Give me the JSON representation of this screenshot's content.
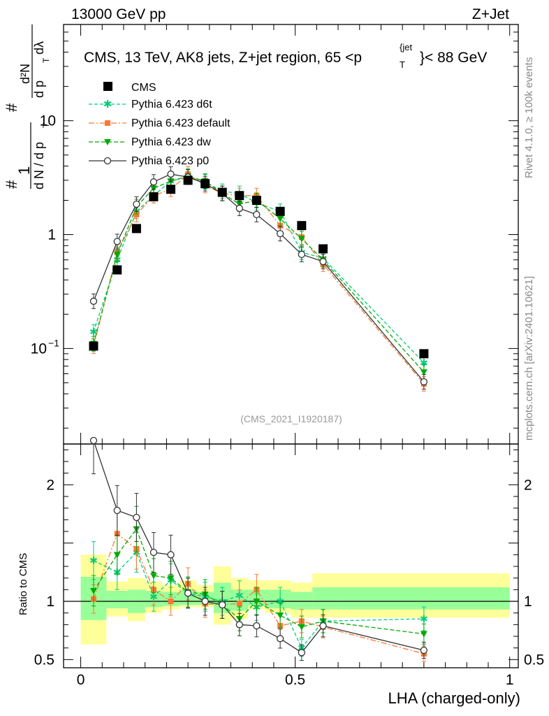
{
  "header": {
    "left": "13000 GeV pp",
    "right": "Z+Jet",
    "rivet": "Rivet 4.1.0, ≥ 100k events",
    "mcplots": "mcplots.cern.ch [arXiv:2401.10621]",
    "analysis": "(CMS_2021_I1920187)"
  },
  "colors": {
    "cms": "#000000",
    "d6t": "#00cc77",
    "default": "#ff7733",
    "dw": "#00aa00",
    "p0": "#333333",
    "band_outer": "#ffff99",
    "band_inner": "#99ff99"
  },
  "chart_data": [
    {
      "type": "scatter",
      "title": "CMS, 13 TeV, AK8 jets, Z+jet region, 65 < pT^jet < 88 GeV",
      "title_parts": {
        "prefix": "CMS, 13 TeV, AK8 jets, Z+jet region, 65 <p",
        "sub": "T",
        "sup": "{jet",
        "suffix": "}< 88 GeV"
      },
      "ylabel": "1/N dN/dp_T d^2N/dp_T dλ",
      "ylabel_parts": {
        "num": "1",
        "den": "d N / d p",
        "sub": "T",
        "num2": "d²N",
        "den2": "d p",
        "sub2": "T",
        "tail": " dλ",
        "hash": "#"
      },
      "yscale": "log",
      "ylim": [
        0.0145,
        70
      ],
      "xlim": [
        -0.04,
        1.02
      ],
      "y_ticks": [
        {
          "value": 0.1,
          "label": "10",
          "sup": "−1"
        },
        {
          "value": 1,
          "label": "1",
          "sup": ""
        },
        {
          "value": 10,
          "label": "10",
          "sup": ""
        }
      ],
      "legend_position": "top-left",
      "x": [
        0.03,
        0.085,
        0.13,
        0.17,
        0.21,
        0.25,
        0.29,
        0.33,
        0.37,
        0.41,
        0.465,
        0.515,
        0.565,
        0.8
      ],
      "series": [
        {
          "name": "CMS",
          "key": "cms",
          "marker": "square",
          "values": [
            0.105,
            0.49,
            1.13,
            2.15,
            2.5,
            3.0,
            2.8,
            2.35,
            2.2,
            2.0,
            1.6,
            1.2,
            0.75,
            0.09
          ]
        },
        {
          "name": "Pythia 6.423 d6t",
          "key": "d6t",
          "marker": "star",
          "dash": "5,3",
          "values": [
            0.14,
            0.6,
            1.6,
            2.2,
            2.95,
            3.2,
            2.9,
            2.4,
            2.3,
            1.9,
            1.6,
            0.7,
            0.62,
            0.075
          ]
        },
        {
          "name": "Pythia 6.423 default",
          "key": "default",
          "marker": "square-small",
          "dash": "8,3,2,3",
          "values": [
            0.105,
            0.7,
            1.5,
            2.2,
            2.5,
            3.4,
            2.7,
            2.3,
            2.2,
            2.2,
            1.2,
            0.95,
            0.55,
            0.049
          ]
        },
        {
          "name": "Pythia 6.423 dw",
          "key": "dw",
          "marker": "triangle-down",
          "dash": "6,3",
          "values": [
            0.11,
            0.67,
            1.76,
            2.55,
            2.95,
            3.25,
            2.95,
            2.3,
            1.85,
            2.0,
            1.38,
            0.92,
            0.6,
            0.062
          ]
        },
        {
          "name": "Pythia 6.423 p0",
          "key": "p0",
          "marker": "circle-open",
          "dash": "",
          "values": [
            0.26,
            0.87,
            1.85,
            2.9,
            3.4,
            3.2,
            2.8,
            2.3,
            1.7,
            1.5,
            1.02,
            0.67,
            0.58,
            0.051
          ]
        }
      ]
    },
    {
      "type": "scatter",
      "ylabel": "Ratio to CMS",
      "xlabel": "LHA (charged-only)",
      "ylim": [
        0.43,
        2.35
      ],
      "xlim": [
        -0.04,
        1.02
      ],
      "y_ticks": [
        {
          "value": 0.5,
          "label": "0.5"
        },
        {
          "value": 1,
          "label": "1"
        },
        {
          "value": 2,
          "label": "2"
        }
      ],
      "x_ticks": [
        {
          "value": 0,
          "label": "0"
        },
        {
          "value": 0.5,
          "label": "0.5"
        },
        {
          "value": 1,
          "label": "1"
        }
      ],
      "x": [
        0.03,
        0.085,
        0.13,
        0.17,
        0.21,
        0.25,
        0.29,
        0.33,
        0.37,
        0.41,
        0.465,
        0.515,
        0.565,
        0.8
      ],
      "bands": {
        "edges": [
          0.0,
          0.06,
          0.11,
          0.15,
          0.19,
          0.23,
          0.27,
          0.31,
          0.35,
          0.39,
          0.43,
          0.49,
          0.54,
          0.6,
          1.0
        ],
        "outer": [
          [
            0.63,
            1.4
          ],
          [
            0.87,
            1.17
          ],
          [
            0.83,
            1.2
          ],
          [
            0.9,
            1.17
          ],
          [
            0.93,
            1.14
          ],
          [
            0.95,
            1.18
          ],
          [
            0.95,
            1.14
          ],
          [
            0.8,
            1.3
          ],
          [
            0.85,
            1.2
          ],
          [
            0.93,
            1.18
          ],
          [
            0.9,
            1.18
          ],
          [
            0.86,
            1.16
          ],
          [
            0.86,
            1.24
          ],
          [
            0.86,
            1.24
          ]
        ],
        "inner": [
          [
            0.84,
            1.21
          ],
          [
            0.94,
            1.09
          ],
          [
            0.9,
            1.1
          ],
          [
            0.95,
            1.09
          ],
          [
            0.96,
            1.08
          ],
          [
            0.97,
            1.1
          ],
          [
            0.97,
            1.08
          ],
          [
            0.9,
            1.16
          ],
          [
            0.92,
            1.1
          ],
          [
            0.96,
            1.1
          ],
          [
            0.94,
            1.1
          ],
          [
            0.93,
            1.08
          ],
          [
            0.93,
            1.12
          ],
          [
            0.93,
            1.12
          ]
        ]
      },
      "series": [
        {
          "name": "Pythia 6.423 d6t",
          "key": "d6t",
          "values": [
            1.35,
            1.25,
            1.42,
            1.04,
            1.18,
            1.07,
            1.04,
            1.0,
            1.05,
            0.95,
            1.0,
            0.6,
            0.83,
            0.85
          ]
        },
        {
          "name": "Pythia 6.423 default",
          "key": "default",
          "values": [
            1.02,
            1.58,
            1.45,
            1.1,
            1.0,
            1.15,
            0.98,
            0.97,
            0.98,
            1.1,
            0.79,
            0.83,
            0.78,
            0.55
          ]
        },
        {
          "name": "Pythia 6.423 dw",
          "key": "dw",
          "values": [
            1.09,
            1.4,
            1.62,
            1.22,
            1.2,
            1.08,
            1.06,
            0.97,
            0.85,
            1.0,
            0.88,
            0.78,
            0.83,
            0.72
          ]
        },
        {
          "name": "Pythia 6.423 p0",
          "key": "p0",
          "values": [
            2.38,
            1.78,
            1.72,
            1.42,
            1.4,
            1.07,
            1.0,
            0.97,
            0.8,
            0.79,
            0.68,
            0.56,
            0.79,
            0.58
          ]
        }
      ]
    }
  ]
}
